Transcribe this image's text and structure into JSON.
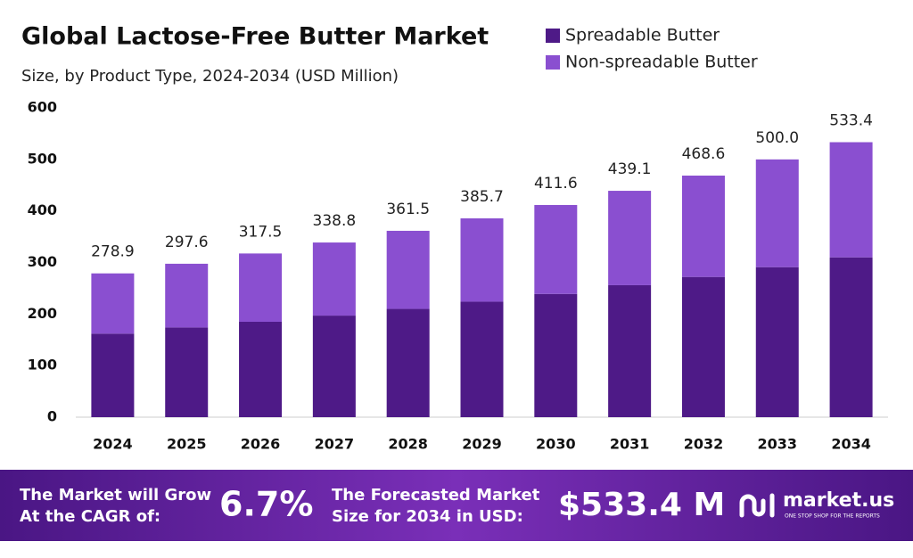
{
  "chart_data": {
    "type": "stacked_bar",
    "title": "Global Lactose-Free Butter Market",
    "subtitle": "Size, by Product Type, 2024-2034 (USD Million)",
    "categories": [
      "2024",
      "2025",
      "2026",
      "2027",
      "2028",
      "2029",
      "2030",
      "2031",
      "2032",
      "2033",
      "2034"
    ],
    "series": [
      {
        "name": "Spreadable Butter",
        "color": "#4e1a87",
        "values": [
          162,
          174,
          185,
          197,
          210,
          224,
          239,
          256,
          272,
          291,
          310
        ]
      },
      {
        "name": "Non-spreadable Butter",
        "color": "#8a4fd0",
        "values": [
          116.9,
          123.6,
          132.5,
          141.8,
          151.5,
          161.7,
          172.6,
          183.1,
          196.6,
          209,
          223.4
        ]
      }
    ],
    "totals": [
      278.9,
      297.6,
      317.5,
      338.8,
      361.5,
      385.7,
      411.6,
      439.1,
      468.6,
      {
        "value": 500,
        "label": "500.0"
      },
      533.4
    ],
    "ylim": [
      0,
      600
    ],
    "yticks": [
      0,
      100,
      200,
      300,
      400,
      500,
      600
    ],
    "grid": false,
    "legend": "top-right"
  },
  "footer": {
    "cagr_text": [
      "The Market will Grow",
      "At the CAGR of:"
    ],
    "cagr": "6.7%",
    "forecast_text": [
      "The Forecasted Market",
      "Size for 2034 in USD:"
    ],
    "forecast": "$533.4 M",
    "brand": "market.us",
    "tagline": "ONE STOP SHOP FOR THE REPORTS"
  }
}
